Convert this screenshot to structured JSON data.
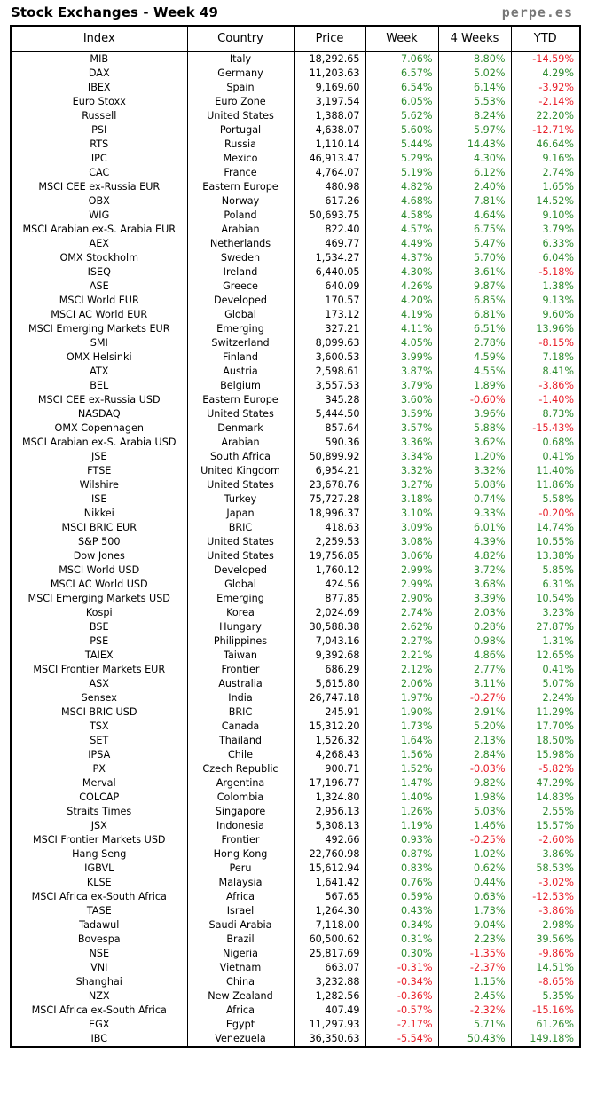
{
  "page": {
    "title": "Stock Exchanges - Week 49",
    "site": "perpe.es"
  },
  "table": {
    "headers": [
      "Index",
      "Country",
      "Price",
      "Week",
      "4 Weeks",
      "YTD"
    ],
    "rows": [
      [
        "MIB",
        "Italy",
        "18,292.65",
        "7.06%",
        "8.80%",
        "-14.59%"
      ],
      [
        "DAX",
        "Germany",
        "11,203.63",
        "6.57%",
        "5.02%",
        "4.29%"
      ],
      [
        "IBEX",
        "Spain",
        "9,169.60",
        "6.54%",
        "6.14%",
        "-3.92%"
      ],
      [
        "Euro Stoxx",
        "Euro Zone",
        "3,197.54",
        "6.05%",
        "5.53%",
        "-2.14%"
      ],
      [
        "Russell",
        "United States",
        "1,388.07",
        "5.62%",
        "8.24%",
        "22.20%"
      ],
      [
        "PSI",
        "Portugal",
        "4,638.07",
        "5.60%",
        "5.97%",
        "-12.71%"
      ],
      [
        "RTS",
        "Russia",
        "1,110.14",
        "5.44%",
        "14.43%",
        "46.64%"
      ],
      [
        "IPC",
        "Mexico",
        "46,913.47",
        "5.29%",
        "4.30%",
        "9.16%"
      ],
      [
        "CAC",
        "France",
        "4,764.07",
        "5.19%",
        "6.12%",
        "2.74%"
      ],
      [
        "MSCI CEE ex-Russia EUR",
        "Eastern Europe",
        "480.98",
        "4.82%",
        "2.40%",
        "1.65%"
      ],
      [
        "OBX",
        "Norway",
        "617.26",
        "4.68%",
        "7.81%",
        "14.52%"
      ],
      [
        "WIG",
        "Poland",
        "50,693.75",
        "4.58%",
        "4.64%",
        "9.10%"
      ],
      [
        "MSCI Arabian ex-S. Arabia EUR",
        "Arabian",
        "822.40",
        "4.57%",
        "6.75%",
        "3.79%"
      ],
      [
        "AEX",
        "Netherlands",
        "469.77",
        "4.49%",
        "5.47%",
        "6.33%"
      ],
      [
        "OMX Stockholm",
        "Sweden",
        "1,534.27",
        "4.37%",
        "5.70%",
        "6.04%"
      ],
      [
        "ISEQ",
        "Ireland",
        "6,440.05",
        "4.30%",
        "3.61%",
        "-5.18%"
      ],
      [
        "ASE",
        "Greece",
        "640.09",
        "4.26%",
        "9.87%",
        "1.38%"
      ],
      [
        "MSCI World EUR",
        "Developed",
        "170.57",
        "4.20%",
        "6.85%",
        "9.13%"
      ],
      [
        "MSCI AC World EUR",
        "Global",
        "173.12",
        "4.19%",
        "6.81%",
        "9.60%"
      ],
      [
        "MSCI Emerging Markets EUR",
        "Emerging",
        "327.21",
        "4.11%",
        "6.51%",
        "13.96%"
      ],
      [
        "SMI",
        "Switzerland",
        "8,099.63",
        "4.05%",
        "2.78%",
        "-8.15%"
      ],
      [
        "OMX Helsinki",
        "Finland",
        "3,600.53",
        "3.99%",
        "4.59%",
        "7.18%"
      ],
      [
        "ATX",
        "Austria",
        "2,598.61",
        "3.87%",
        "4.55%",
        "8.41%"
      ],
      [
        "BEL",
        "Belgium",
        "3,557.53",
        "3.79%",
        "1.89%",
        "-3.86%"
      ],
      [
        "MSCI CEE ex-Russia USD",
        "Eastern Europe",
        "345.28",
        "3.60%",
        "-0.60%",
        "-1.40%"
      ],
      [
        "NASDAQ",
        "United States",
        "5,444.50",
        "3.59%",
        "3.96%",
        "8.73%"
      ],
      [
        "OMX Copenhagen",
        "Denmark",
        "857.64",
        "3.57%",
        "5.88%",
        "-15.43%"
      ],
      [
        "MSCI Arabian ex-S. Arabia USD",
        "Arabian",
        "590.36",
        "3.36%",
        "3.62%",
        "0.68%"
      ],
      [
        "JSE",
        "South Africa",
        "50,899.92",
        "3.34%",
        "1.20%",
        "0.41%"
      ],
      [
        "FTSE",
        "United Kingdom",
        "6,954.21",
        "3.32%",
        "3.32%",
        "11.40%"
      ],
      [
        "Wilshire",
        "United States",
        "23,678.76",
        "3.27%",
        "5.08%",
        "11.86%"
      ],
      [
        "ISE",
        "Turkey",
        "75,727.28",
        "3.18%",
        "0.74%",
        "5.58%"
      ],
      [
        "Nikkei",
        "Japan",
        "18,996.37",
        "3.10%",
        "9.33%",
        "-0.20%"
      ],
      [
        "MSCI BRIC EUR",
        "BRIC",
        "418.63",
        "3.09%",
        "6.01%",
        "14.74%"
      ],
      [
        "S&P 500",
        "United States",
        "2,259.53",
        "3.08%",
        "4.39%",
        "10.55%"
      ],
      [
        "Dow Jones",
        "United States",
        "19,756.85",
        "3.06%",
        "4.82%",
        "13.38%"
      ],
      [
        "MSCI World USD",
        "Developed",
        "1,760.12",
        "2.99%",
        "3.72%",
        "5.85%"
      ],
      [
        "MSCI AC World USD",
        "Global",
        "424.56",
        "2.99%",
        "3.68%",
        "6.31%"
      ],
      [
        "MSCI Emerging Markets USD",
        "Emerging",
        "877.85",
        "2.90%",
        "3.39%",
        "10.54%"
      ],
      [
        "Kospi",
        "Korea",
        "2,024.69",
        "2.74%",
        "2.03%",
        "3.23%"
      ],
      [
        "BSE",
        "Hungary",
        "30,588.38",
        "2.62%",
        "0.28%",
        "27.87%"
      ],
      [
        "PSE",
        "Philippines",
        "7,043.16",
        "2.27%",
        "0.98%",
        "1.31%"
      ],
      [
        "TAIEX",
        "Taiwan",
        "9,392.68",
        "2.21%",
        "4.86%",
        "12.65%"
      ],
      [
        "MSCI Frontier Markets EUR",
        "Frontier",
        "686.29",
        "2.12%",
        "2.77%",
        "0.41%"
      ],
      [
        "ASX",
        "Australia",
        "5,615.80",
        "2.06%",
        "3.11%",
        "5.07%"
      ],
      [
        "Sensex",
        "India",
        "26,747.18",
        "1.97%",
        "-0.27%",
        "2.24%"
      ],
      [
        "MSCI BRIC USD",
        "BRIC",
        "245.91",
        "1.90%",
        "2.91%",
        "11.29%"
      ],
      [
        "TSX",
        "Canada",
        "15,312.20",
        "1.73%",
        "5.20%",
        "17.70%"
      ],
      [
        "SET",
        "Thailand",
        "1,526.32",
        "1.64%",
        "2.13%",
        "18.50%"
      ],
      [
        "IPSA",
        "Chile",
        "4,268.43",
        "1.56%",
        "2.84%",
        "15.98%"
      ],
      [
        "PX",
        "Czech Republic",
        "900.71",
        "1.52%",
        "-0.03%",
        "-5.82%"
      ],
      [
        "Merval",
        "Argentina",
        "17,196.77",
        "1.47%",
        "9.82%",
        "47.29%"
      ],
      [
        "COLCAP",
        "Colombia",
        "1,324.80",
        "1.40%",
        "1.98%",
        "14.83%"
      ],
      [
        "Straits Times",
        "Singapore",
        "2,956.13",
        "1.26%",
        "5.03%",
        "2.55%"
      ],
      [
        "JSX",
        "Indonesia",
        "5,308.13",
        "1.19%",
        "1.46%",
        "15.57%"
      ],
      [
        "MSCI Frontier Markets USD",
        "Frontier",
        "492.66",
        "0.93%",
        "-0.25%",
        "-2.60%"
      ],
      [
        "Hang Seng",
        "Hong Kong",
        "22,760.98",
        "0.87%",
        "1.02%",
        "3.86%"
      ],
      [
        "IGBVL",
        "Peru",
        "15,612.94",
        "0.83%",
        "0.62%",
        "58.53%"
      ],
      [
        "KLSE",
        "Malaysia",
        "1,641.42",
        "0.76%",
        "0.44%",
        "-3.02%"
      ],
      [
        "MSCI Africa ex-South Africa",
        "Africa",
        "567.65",
        "0.59%",
        "0.63%",
        "-12.53%"
      ],
      [
        "TASE",
        "Israel",
        "1,264.30",
        "0.43%",
        "1.73%",
        "-3.86%"
      ],
      [
        "Tadawul",
        "Saudi Arabia",
        "7,118.00",
        "0.34%",
        "9.04%",
        "2.98%"
      ],
      [
        "Bovespa",
        "Brazil",
        "60,500.62",
        "0.31%",
        "2.23%",
        "39.56%"
      ],
      [
        "NSE",
        "Nigeria",
        "25,817.69",
        "0.30%",
        "-1.35%",
        "-9.86%"
      ],
      [
        "VNI",
        "Vietnam",
        "663.07",
        "-0.31%",
        "-2.37%",
        "14.51%"
      ],
      [
        "Shanghai",
        "China",
        "3,232.88",
        "-0.34%",
        "1.15%",
        "-8.65%"
      ],
      [
        "NZX",
        "New Zealand",
        "1,282.56",
        "-0.36%",
        "2.45%",
        "5.35%"
      ],
      [
        "MSCI Africa ex-South Africa",
        "Africa",
        "407.49",
        "-0.57%",
        "-2.32%",
        "-15.16%"
      ],
      [
        "EGX",
        "Egypt",
        "11,297.93",
        "-2.17%",
        "5.71%",
        "61.26%"
      ],
      [
        "IBC",
        "Venezuela",
        "36,350.63",
        "-5.54%",
        "50.43%",
        "149.18%"
      ]
    ]
  },
  "colors": {
    "positive": "#2e8b2e",
    "negative": "#e8202a",
    "site": "#777777"
  }
}
